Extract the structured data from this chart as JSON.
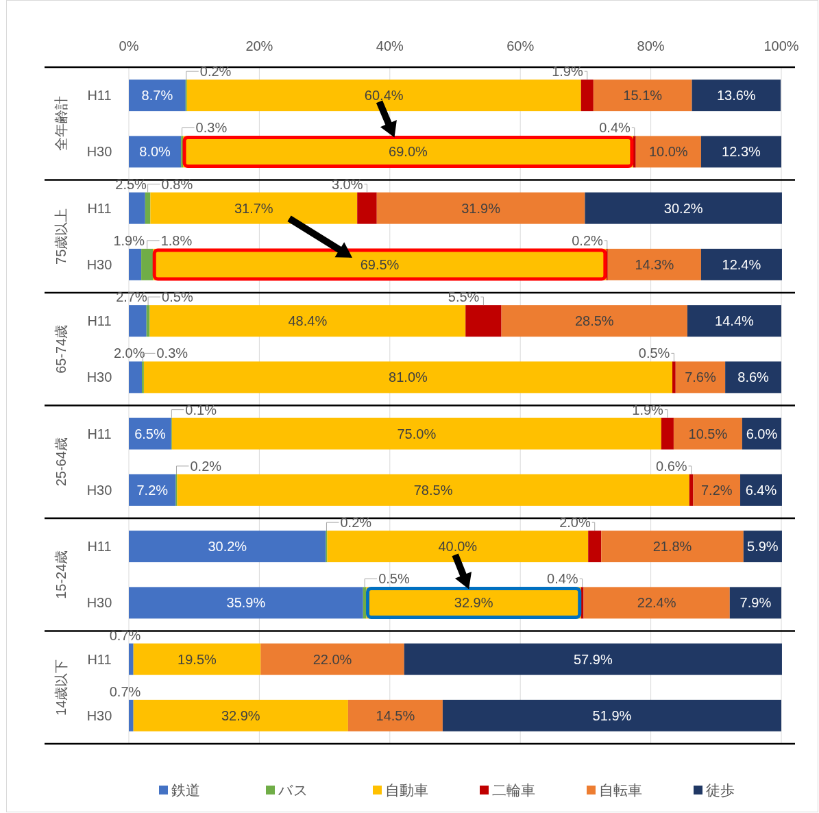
{
  "chart_data": [
    {
      "type": "bar",
      "orientation": "horizontal",
      "stacked": true,
      "ylabel": "全年齢計",
      "categories": [
        "H11",
        "H30"
      ],
      "xlim": [
        0,
        100
      ],
      "xticks": [
        {
          "value": 0,
          "label": "0%"
        },
        {
          "value": 20,
          "label": "20%"
        },
        {
          "value": 40,
          "label": "40%"
        },
        {
          "value": 60,
          "label": "60%"
        },
        {
          "value": 80,
          "label": "80%"
        },
        {
          "value": 100,
          "label": "100%"
        }
      ],
      "grid": "x",
      "series": [
        {
          "color": "#4472c4",
          "values": [
            8.7,
            8.0
          ],
          "value_labels": [
            "8.7%",
            "8.0%"
          ]
        },
        {
          "color": "#70ad47",
          "values": [
            0.2,
            0.3
          ],
          "value_labels": [
            "0.2%",
            "0.3%"
          ]
        },
        {
          "color": "#ffc000",
          "values": [
            60.4,
            69.0
          ],
          "value_labels": [
            "60.4%",
            "69.0%"
          ]
        },
        {
          "color": "#c00000",
          "values": [
            1.9,
            0.4
          ],
          "value_labels": [
            "1.9%",
            "0.4%"
          ]
        },
        {
          "color": "#ed7d31",
          "values": [
            15.1,
            10.0
          ],
          "value_labels": [
            "15.1%",
            "10.0%"
          ]
        },
        {
          "color": "#203864",
          "values": [
            13.6,
            12.3
          ],
          "value_labels": [
            "13.6%",
            "12.3%"
          ]
        }
      ]
    },
    {
      "type": "bar",
      "orientation": "horizontal",
      "stacked": true,
      "ylabel": "75歳以上",
      "categories": [
        "H11",
        "H30"
      ],
      "xlim": [
        0,
        100
      ],
      "xticks": [
        {
          "value": 0,
          "label": null
        },
        {
          "value": 20,
          "label": null
        },
        {
          "value": 40,
          "label": null
        },
        {
          "value": 60,
          "label": null
        },
        {
          "value": 80,
          "label": null
        },
        {
          "value": 100,
          "label": null
        }
      ],
      "grid": "x",
      "tick_labels": "y",
      "series": [
        {
          "color": "#4472c4",
          "values": [
            2.5,
            1.9
          ],
          "value_labels": [
            "2.5%",
            "1.9%"
          ]
        },
        {
          "color": "#70ad47",
          "values": [
            0.8,
            1.8
          ],
          "value_labels": [
            "0.8%",
            "1.8%"
          ]
        },
        {
          "color": "#ffc000",
          "values": [
            31.7,
            69.5
          ],
          "value_labels": [
            "31.7%",
            "69.5%"
          ]
        },
        {
          "color": "#c00000",
          "values": [
            3.0,
            0.2
          ],
          "value_labels": [
            "3.0%",
            "0.2%"
          ]
        },
        {
          "color": "#ed7d31",
          "values": [
            31.9,
            14.3
          ],
          "value_labels": [
            "31.9%",
            "14.3%"
          ]
        },
        {
          "color": "#203864",
          "values": [
            30.2,
            12.4
          ],
          "value_labels": [
            "30.2%",
            "12.4%"
          ]
        }
      ]
    },
    {
      "type": "bar",
      "orientation": "horizontal",
      "stacked": true,
      "ylabel": "65-74歳",
      "categories": [
        "H11",
        "H30"
      ],
      "xlim": [
        0,
        100
      ],
      "xticks": [
        {
          "value": 0,
          "label": null
        },
        {
          "value": 20,
          "label": null
        },
        {
          "value": 40,
          "label": null
        },
        {
          "value": 60,
          "label": null
        },
        {
          "value": 80,
          "label": null
        },
        {
          "value": 100,
          "label": null
        }
      ],
      "grid": "x",
      "tick_labels": "y",
      "series": [
        {
          "color": "#4472c4",
          "values": [
            2.7,
            2.0
          ],
          "value_labels": [
            "2.7%",
            "2.0%"
          ]
        },
        {
          "color": "#70ad47",
          "values": [
            0.5,
            0.3
          ],
          "value_labels": [
            "0.5%",
            "0.3%"
          ]
        },
        {
          "color": "#ffc000",
          "values": [
            48.4,
            81.0
          ],
          "value_labels": [
            "48.4%",
            "81.0%"
          ]
        },
        {
          "color": "#c00000",
          "values": [
            5.5,
            0.5
          ],
          "value_labels": [
            "5.5%",
            "0.5%"
          ]
        },
        {
          "color": "#ed7d31",
          "values": [
            28.5,
            7.6
          ],
          "value_labels": [
            "28.5%",
            "7.6%"
          ]
        },
        {
          "color": "#203864",
          "values": [
            14.4,
            8.6
          ],
          "value_labels": [
            "14.4%",
            "8.6%"
          ]
        }
      ]
    },
    {
      "type": "bar",
      "orientation": "horizontal",
      "stacked": true,
      "ylabel": "25-64歳",
      "categories": [
        "H11",
        "H30"
      ],
      "xlim": [
        0,
        100
      ],
      "xticks": [
        {
          "value": 0,
          "label": null
        },
        {
          "value": 20,
          "label": null
        },
        {
          "value": 40,
          "label": null
        },
        {
          "value": 60,
          "label": null
        },
        {
          "value": 80,
          "label": null
        },
        {
          "value": 100,
          "label": null
        }
      ],
      "grid": "x",
      "tick_labels": "y",
      "series": [
        {
          "color": "#4472c4",
          "values": [
            6.5,
            7.2
          ],
          "value_labels": [
            "6.5%",
            "7.2%"
          ]
        },
        {
          "color": "#70ad47",
          "values": [
            0.1,
            0.2
          ],
          "value_labels": [
            "0.1%",
            "0.2%"
          ]
        },
        {
          "color": "#ffc000",
          "values": [
            75.0,
            78.5
          ],
          "value_labels": [
            "75.0%",
            "78.5%"
          ]
        },
        {
          "color": "#c00000",
          "values": [
            1.9,
            0.6
          ],
          "value_labels": [
            "1.9%",
            "0.6%"
          ]
        },
        {
          "color": "#ed7d31",
          "values": [
            10.5,
            7.2
          ],
          "value_labels": [
            "10.5%",
            "7.2%"
          ]
        },
        {
          "color": "#203864",
          "values": [
            6.0,
            6.4
          ],
          "value_labels": [
            "6.0%",
            "6.4%"
          ]
        }
      ]
    },
    {
      "type": "bar",
      "orientation": "horizontal",
      "stacked": true,
      "ylabel": "15-24歳",
      "categories": [
        "H11",
        "H30"
      ],
      "xlim": [
        0,
        100
      ],
      "xticks": [
        {
          "value": 0,
          "label": null
        },
        {
          "value": 20,
          "label": null
        },
        {
          "value": 40,
          "label": null
        },
        {
          "value": 60,
          "label": null
        },
        {
          "value": 80,
          "label": null
        },
        {
          "value": 100,
          "label": null
        }
      ],
      "grid": "x",
      "tick_labels": "y",
      "series": [
        {
          "color": "#4472c4",
          "values": [
            30.2,
            35.9
          ],
          "value_labels": [
            "30.2%",
            "35.9%"
          ]
        },
        {
          "color": "#70ad47",
          "values": [
            0.2,
            0.5
          ],
          "value_labels": [
            "0.2%",
            "0.5%"
          ]
        },
        {
          "color": "#ffc000",
          "values": [
            40.0,
            32.9
          ],
          "value_labels": [
            "40.0%",
            "32.9%"
          ]
        },
        {
          "color": "#c00000",
          "values": [
            2.0,
            0.4
          ],
          "value_labels": [
            "2.0%",
            "0.4%"
          ]
        },
        {
          "color": "#ed7d31",
          "values": [
            21.8,
            22.4
          ],
          "value_labels": [
            "21.8%",
            "22.4%"
          ]
        },
        {
          "color": "#203864",
          "values": [
            5.9,
            7.9
          ],
          "value_labels": [
            "5.9%",
            "7.9%"
          ]
        }
      ]
    },
    {
      "type": "bar",
      "orientation": "horizontal",
      "stacked": true,
      "ylabel": "14歳以下",
      "categories": [
        "H11",
        "H30"
      ],
      "xlim": [
        0,
        100
      ],
      "xticks": [
        {
          "value": 0,
          "label": null
        },
        {
          "value": 20,
          "label": null
        },
        {
          "value": 40,
          "label": null
        },
        {
          "value": 60,
          "label": null
        },
        {
          "value": 80,
          "label": null
        },
        {
          "value": 100,
          "label": null
        }
      ],
      "grid": "x",
      "tick_labels": "y",
      "legend": "bottom",
      "series": [
        {
          "name": "鉄道",
          "color": "#4472c4",
          "values": [
            0.7,
            0.7
          ],
          "value_labels": [
            "0.7%",
            "0.7%"
          ]
        },
        {
          "name": "バス",
          "color": "#70ad47",
          "values": [
            null,
            null
          ]
        },
        {
          "name": "自動車",
          "color": "#ffc000",
          "values": [
            19.5,
            32.9
          ],
          "value_labels": [
            "19.5%",
            "32.9%"
          ]
        },
        {
          "name": "二輪車",
          "color": "#c00000",
          "values": [
            null,
            null
          ]
        },
        {
          "name": "自転車",
          "color": "#ed7d31",
          "values": [
            22.0,
            14.5
          ],
          "value_labels": [
            "22.0%",
            "14.5%"
          ]
        },
        {
          "name": "徒歩",
          "color": "#203864",
          "values": [
            57.9,
            51.9
          ],
          "value_labels": [
            "57.9%",
            "51.9%"
          ]
        }
      ]
    }
  ]
}
